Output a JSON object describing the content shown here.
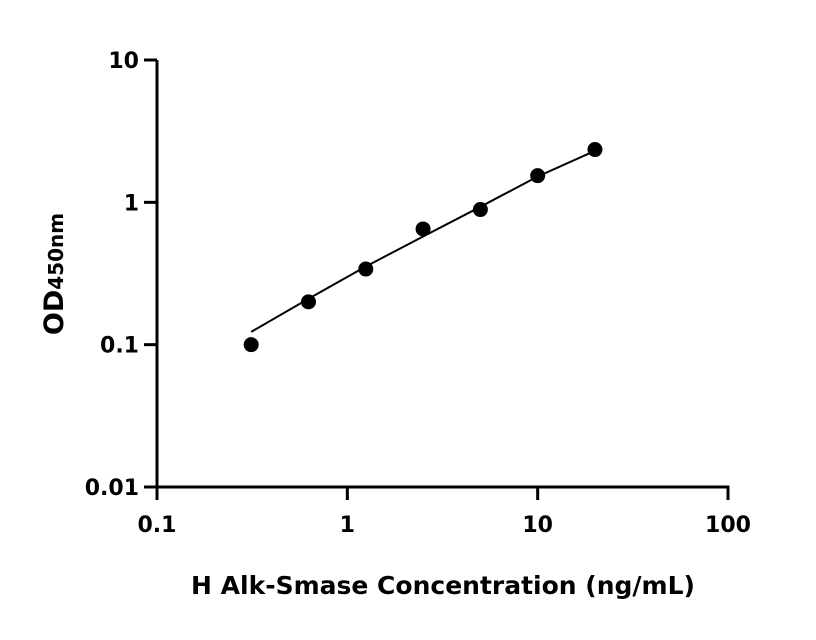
{
  "chart_data": {
    "type": "scatter",
    "title": "",
    "xlabel": "H Alk-Smase Concentration (ng/mL)",
    "ylabel_main": "OD",
    "ylabel_sub": "450nm",
    "xscale": "log",
    "yscale": "log",
    "xlim": [
      0.1,
      100
    ],
    "ylim": [
      0.01,
      10
    ],
    "xticks": [
      "0.1",
      "1",
      "10",
      "100"
    ],
    "yticks": [
      "0.01",
      "0.1",
      "1",
      "10"
    ],
    "grid": false,
    "legend": "none",
    "points": {
      "x": [
        0.3125,
        0.625,
        1.25,
        2.5,
        5,
        10,
        20
      ],
      "y": [
        0.1,
        0.2,
        0.34,
        0.65,
        0.89,
        1.54,
        2.35
      ]
    },
    "fit_curve": {
      "x": [
        0.3125,
        0.625,
        1.25,
        2.5,
        5,
        10,
        20
      ],
      "y": [
        0.123,
        0.21,
        0.354,
        0.575,
        0.93,
        1.52,
        2.3
      ]
    },
    "colors": {
      "marker": "#000000",
      "line": "#000000"
    }
  }
}
